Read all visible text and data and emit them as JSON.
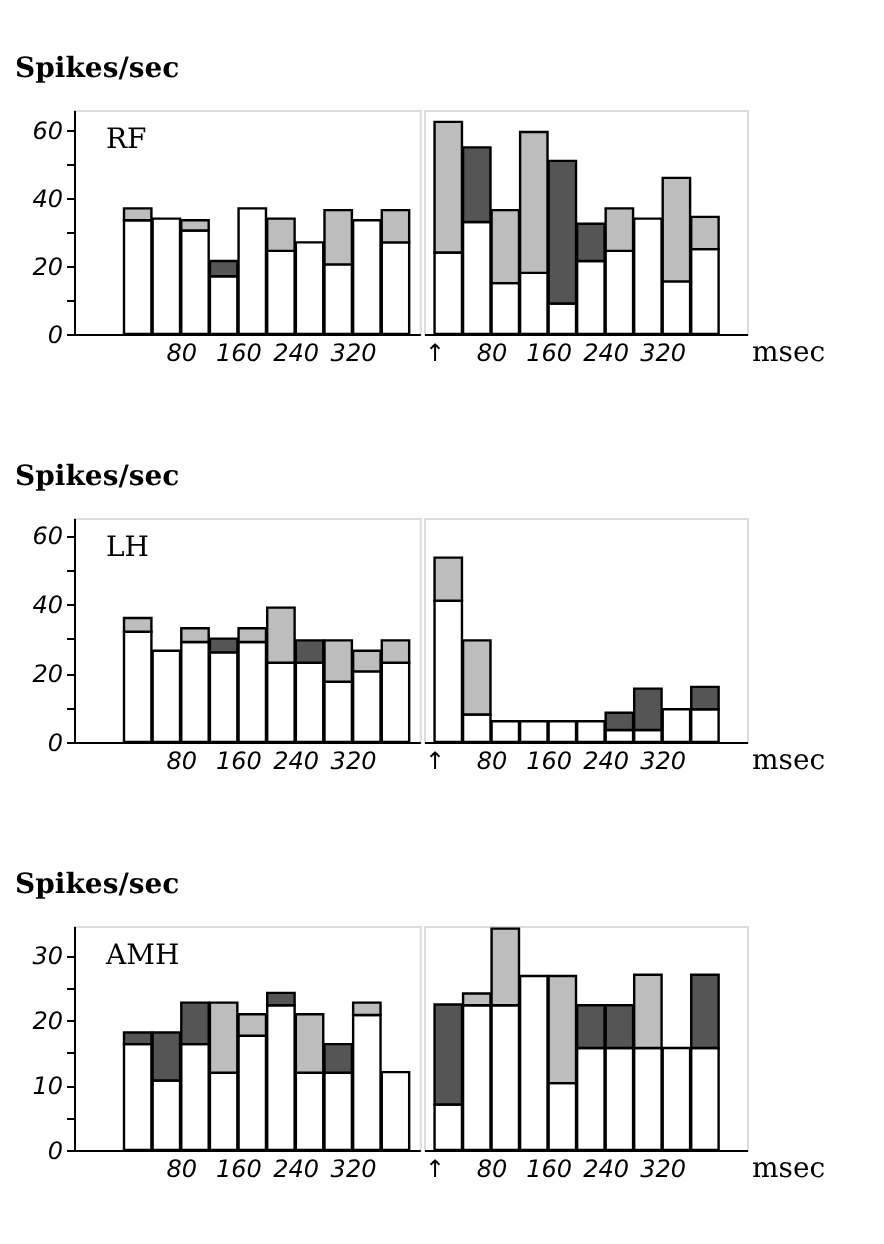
{
  "chart_data": [
    {
      "type": "bar",
      "stacked": true,
      "ylabel": "Spikes/sec",
      "annotations": [
        "RF"
      ],
      "grid": false,
      "x": [
        20,
        60,
        100,
        140,
        180,
        220,
        260,
        300,
        340,
        380
      ],
      "xlim": [
        -55,
        400
      ],
      "xticks": [
        80,
        160,
        240,
        320
      ],
      "ylim": [
        0,
        66
      ],
      "yticks": [
        0,
        {
          "value": 10,
          "label": null
        },
        20,
        {
          "value": 30,
          "label": null
        },
        40,
        {
          "value": 50,
          "label": null
        },
        60
      ],
      "series": [
        {
          "color": "#ffffff",
          "values": [
            33.5,
            34,
            30.5,
            17,
            37,
            24.5,
            27,
            20.5,
            33.5,
            27
          ]
        },
        {
          "color": "#bdbdbd",
          "values": [
            3.5,
            null,
            3,
            null,
            null,
            9.5,
            null,
            16,
            null,
            9.5
          ]
        },
        {
          "color": "#555555",
          "values": [
            null,
            null,
            null,
            4.5,
            null,
            null,
            null,
            null,
            null,
            null
          ]
        }
      ]
    },
    {
      "type": "bar",
      "stacked": true,
      "xlabel": "msec",
      "tick_labels": "x",
      "grid": false,
      "x": [
        20,
        60,
        100,
        140,
        180,
        220,
        260,
        300,
        340,
        380
      ],
      "xlim": [
        0,
        425
      ],
      "xticks": [
        {
          "value": 0,
          "label": "↑"
        },
        80,
        160,
        240,
        320
      ],
      "ylim": [
        0,
        66
      ],
      "series": [
        {
          "color": "#ffffff",
          "values": [
            24,
            33,
            15,
            18,
            9,
            21.5,
            24.5,
            34,
            15.5,
            25
          ]
        },
        {
          "color": "#bdbdbd",
          "values": [
            38.5,
            null,
            21.5,
            41.5,
            null,
            null,
            12.5,
            null,
            30.5,
            9.5
          ]
        },
        {
          "color": "#555555",
          "values": [
            null,
            22,
            null,
            null,
            42,
            11,
            null,
            null,
            null,
            null
          ]
        }
      ]
    },
    {
      "type": "bar",
      "stacked": true,
      "ylabel": "Spikes/sec",
      "annotations": [
        "LH"
      ],
      "grid": false,
      "x": [
        20,
        60,
        100,
        140,
        180,
        220,
        260,
        300,
        340,
        380
      ],
      "xlim": [
        -55,
        400
      ],
      "xticks": [
        80,
        160,
        240,
        320
      ],
      "ylim": [
        0,
        65
      ],
      "yticks": [
        0,
        {
          "value": 10,
          "label": null
        },
        20,
        {
          "value": 30,
          "label": null
        },
        40,
        {
          "value": 50,
          "label": null
        },
        60
      ],
      "series": [
        {
          "color": "#ffffff",
          "values": [
            32,
            26.5,
            29,
            26,
            29,
            23,
            23,
            17.5,
            20.5,
            23
          ]
        },
        {
          "color": "#bdbdbd",
          "values": [
            4,
            null,
            4,
            null,
            4,
            16,
            null,
            12,
            6,
            6.5
          ]
        },
        {
          "color": "#555555",
          "values": [
            null,
            null,
            null,
            4,
            null,
            null,
            6.5,
            null,
            null,
            null
          ]
        }
      ]
    },
    {
      "type": "bar",
      "stacked": true,
      "xlabel": "msec",
      "tick_labels": "x",
      "grid": false,
      "x": [
        20,
        60,
        100,
        140,
        180,
        220,
        260,
        300,
        340,
        380
      ],
      "xlim": [
        0,
        425
      ],
      "xticks": [
        {
          "value": 0,
          "label": "↑"
        },
        80,
        160,
        240,
        320
      ],
      "ylim": [
        0,
        65
      ],
      "series": [
        {
          "color": "#ffffff",
          "values": [
            41,
            8,
            6,
            6,
            6,
            6,
            3.5,
            3.5,
            9.5,
            9.5
          ]
        },
        {
          "color": "#bdbdbd",
          "values": [
            12.5,
            21.5,
            null,
            null,
            null,
            null,
            null,
            null,
            null,
            null
          ]
        },
        {
          "color": "#555555",
          "values": [
            null,
            null,
            null,
            null,
            null,
            null,
            5,
            12,
            null,
            6.5
          ]
        }
      ]
    },
    {
      "type": "bar",
      "stacked": true,
      "ylabel": "Spikes/sec",
      "annotations": [
        "AMH"
      ],
      "grid": false,
      "x": [
        20,
        60,
        100,
        140,
        180,
        220,
        260,
        300,
        340,
        380
      ],
      "xlim": [
        -55,
        400
      ],
      "xticks": [
        80,
        160,
        240,
        320
      ],
      "ylim": [
        0,
        34.5
      ],
      "yticks": [
        0,
        {
          "value": 5,
          "label": null
        },
        10,
        {
          "value": 15,
          "label": null
        },
        20,
        {
          "value": 25,
          "label": null
        },
        30
      ],
      "series": [
        {
          "color": "#ffffff",
          "values": [
            16.3,
            10.7,
            16.3,
            11.9,
            17.6,
            22.3,
            11.9,
            11.9,
            20.8,
            12
          ]
        },
        {
          "color": "#bdbdbd",
          "values": [
            null,
            null,
            null,
            10.8,
            3.3,
            null,
            9,
            null,
            1.9,
            null
          ]
        },
        {
          "color": "#555555",
          "values": [
            1.8,
            7.4,
            6.4,
            null,
            null,
            1.9,
            null,
            4.4,
            null,
            null
          ]
        }
      ]
    },
    {
      "type": "bar",
      "stacked": true,
      "xlabel": "msec",
      "tick_labels": "x",
      "grid": false,
      "x": [
        20,
        60,
        100,
        140,
        180,
        220,
        260,
        300,
        340,
        380
      ],
      "xlim": [
        0,
        425
      ],
      "xticks": [
        {
          "value": 0,
          "label": "↑"
        },
        80,
        160,
        240,
        320
      ],
      "ylim": [
        0,
        34.5
      ],
      "series": [
        {
          "color": "#ffffff",
          "values": [
            7,
            22.3,
            22.3,
            26.8,
            10.3,
            15.7,
            15.7,
            15.7,
            15.7,
            15.7
          ]
        },
        {
          "color": "#bdbdbd",
          "values": [
            null,
            1.8,
            11.8,
            null,
            16.5,
            null,
            null,
            11.3,
            null,
            null
          ]
        },
        {
          "color": "#555555",
          "values": [
            15.4,
            null,
            null,
            null,
            null,
            6.6,
            6.6,
            null,
            null,
            11.3
          ]
        }
      ]
    }
  ]
}
